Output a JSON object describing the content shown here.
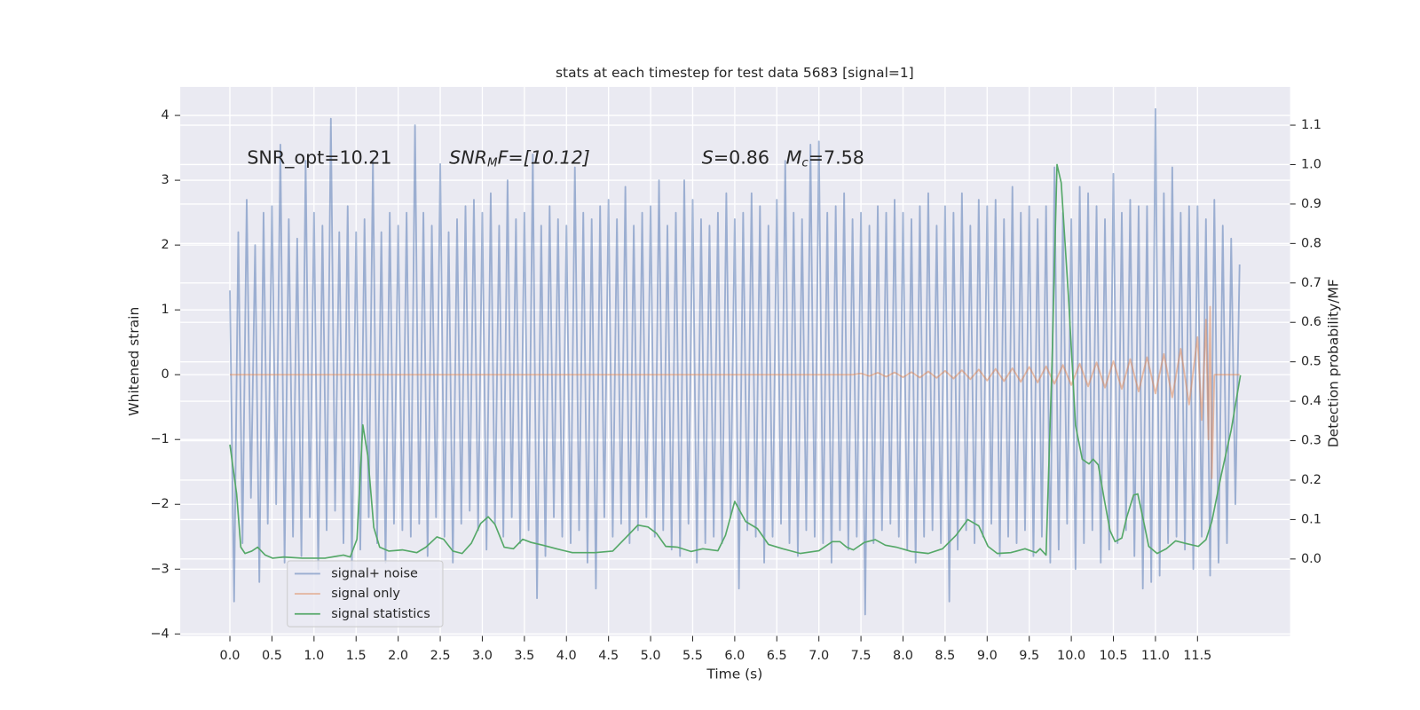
{
  "chart_data": {
    "type": "line",
    "title": "stats at each timestep for test data 5683 [signal=1]",
    "xlabel": "Time (s)",
    "ylabel": "Whitened strain",
    "y2label": "Detection probability/MF",
    "annotations": [
      {
        "parts": [
          "SNR_opt=10.21"
        ]
      },
      {
        "parts": [
          "SNR",
          "M",
          "F=[10.12]"
        ]
      },
      {
        "parts": [
          "S",
          "=0.86"
        ]
      },
      {
        "parts": [
          "M",
          "c",
          "=7.58"
        ]
      }
    ],
    "background": "#eaeaf2",
    "grid": true,
    "legend": "lower left",
    "xlim": [
      -0.59,
      12.6
    ],
    "xticks": [
      {
        "value": 0,
        "label": "0.0"
      },
      0.5,
      {
        "value": 1,
        "label": "1.0"
      },
      1.5,
      {
        "value": 2,
        "label": "2.0"
      },
      2.5,
      {
        "value": 3,
        "label": "3.0"
      },
      3.5,
      {
        "value": 4,
        "label": "4.0"
      },
      4.5,
      {
        "value": 5,
        "label": "5.0"
      },
      5.5,
      {
        "value": 6,
        "label": "6.0"
      },
      6.5,
      {
        "value": 7,
        "label": "7.0"
      },
      7.5,
      {
        "value": 8,
        "label": "8.0"
      },
      8.5,
      {
        "value": 9,
        "label": "9.0"
      },
      9.5,
      {
        "value": 10,
        "label": "10.0"
      },
      10.5,
      {
        "value": 11,
        "label": "11.0"
      },
      11.5
    ],
    "ylim": [
      -4.03,
      4.44
    ],
    "yticks": [
      {
        "value": -4,
        "label": "−4"
      },
      {
        "value": -3,
        "label": "−3"
      },
      {
        "value": -2,
        "label": "−2"
      },
      {
        "value": -1,
        "label": "−1"
      },
      0,
      1,
      2,
      3,
      4
    ],
    "y2lim": [
      -0.195,
      1.197
    ],
    "y2ticks": [
      {
        "value": 0,
        "label": "0.0"
      },
      0.1,
      0.2,
      0.3,
      0.4,
      0.5,
      0.6,
      0.7,
      0.8,
      0.9,
      {
        "value": 1,
        "label": "1.0"
      },
      1.1
    ],
    "series": [
      {
        "name": "signal+ noise",
        "color": "#4c72b0",
        "opacity": 0.5,
        "x": [
          0,
          0.05,
          0.1,
          0.15,
          0.2,
          0.25,
          0.3,
          0.35,
          0.4,
          0.45,
          0.5,
          0.55,
          0.6,
          0.65,
          0.7,
          0.75,
          0.8,
          0.85,
          0.9,
          0.95,
          1,
          1.05,
          1.1,
          1.15,
          1.2,
          1.25,
          1.3,
          1.35,
          1.4,
          1.45,
          1.5,
          1.55,
          1.6,
          1.65,
          1.7,
          1.75,
          1.8,
          1.85,
          1.9,
          1.95,
          2,
          2.05,
          2.1,
          2.15,
          2.2,
          2.25,
          2.3,
          2.35,
          2.4,
          2.45,
          2.5,
          2.55,
          2.6,
          2.65,
          2.7,
          2.75,
          2.8,
          2.85,
          2.9,
          2.95,
          3,
          3.05,
          3.1,
          3.15,
          3.2,
          3.25,
          3.3,
          3.35,
          3.4,
          3.45,
          3.5,
          3.55,
          3.6,
          3.65,
          3.7,
          3.75,
          3.8,
          3.85,
          3.9,
          3.95,
          4,
          4.05,
          4.1,
          4.15,
          4.2,
          4.25,
          4.3,
          4.35,
          4.4,
          4.45,
          4.5,
          4.55,
          4.6,
          4.65,
          4.7,
          4.75,
          4.8,
          4.85,
          4.9,
          4.95,
          5,
          5.05,
          5.1,
          5.15,
          5.2,
          5.25,
          5.3,
          5.35,
          5.4,
          5.45,
          5.5,
          5.55,
          5.6,
          5.65,
          5.7,
          5.75,
          5.8,
          5.85,
          5.9,
          5.95,
          6,
          6.05,
          6.1,
          6.15,
          6.2,
          6.25,
          6.3,
          6.35,
          6.4,
          6.45,
          6.5,
          6.55,
          6.6,
          6.65,
          6.7,
          6.75,
          6.8,
          6.85,
          6.9,
          6.95,
          7,
          7.05,
          7.1,
          7.15,
          7.2,
          7.25,
          7.3,
          7.35,
          7.4,
          7.45,
          7.5,
          7.55,
          7.6,
          7.65,
          7.7,
          7.75,
          7.8,
          7.85,
          7.9,
          7.95,
          8,
          8.05,
          8.1,
          8.15,
          8.2,
          8.25,
          8.3,
          8.35,
          8.4,
          8.45,
          8.5,
          8.55,
          8.6,
          8.65,
          8.7,
          8.75,
          8.8,
          8.85,
          8.9,
          8.95,
          9,
          9.05,
          9.1,
          9.15,
          9.2,
          9.25,
          9.3,
          9.35,
          9.4,
          9.45,
          9.5,
          9.55,
          9.6,
          9.65,
          9.7,
          9.75,
          9.8,
          9.85,
          9.9,
          9.95,
          10,
          10.05,
          10.1,
          10.15,
          10.2,
          10.25,
          10.3,
          10.35,
          10.4,
          10.45,
          10.5,
          10.55,
          10.6,
          10.65,
          10.7,
          10.75,
          10.8,
          10.85,
          10.9,
          10.95,
          11,
          11.05,
          11.1,
          11.15,
          11.2,
          11.25,
          11.3,
          11.35,
          11.4,
          11.45,
          11.5,
          11.55,
          11.6,
          11.65,
          11.7,
          11.75,
          11.8,
          11.85,
          11.9,
          11.95,
          12
        ],
        "values": [
          1.3,
          -3.5,
          2.2,
          -2.6,
          2.7,
          -1.9,
          2.0,
          -3.2,
          2.5,
          -2.3,
          2.6,
          -2.0,
          3.55,
          -2.9,
          2.4,
          -2.5,
          2.1,
          -2.8,
          3.3,
          -2.2,
          2.5,
          -3.0,
          2.3,
          -2.4,
          3.95,
          -2.1,
          2.2,
          -2.6,
          2.6,
          -3.0,
          2.2,
          -2.7,
          2.4,
          -2.2,
          3.3,
          -2.6,
          2.2,
          -2.9,
          2.5,
          -2.3,
          2.3,
          -2.4,
          2.5,
          -2.5,
          3.85,
          -2.3,
          2.5,
          -2.8,
          2.3,
          -2.2,
          3.25,
          -2.5,
          2.2,
          -2.9,
          2.4,
          -2.3,
          2.6,
          -2.1,
          2.7,
          -2.4,
          2.5,
          -2.7,
          2.8,
          -2.3,
          2.3,
          -2.5,
          3.0,
          -2.2,
          2.4,
          -2.6,
          2.5,
          -2.4,
          3.4,
          -3.45,
          2.3,
          -2.8,
          2.6,
          -2.2,
          2.4,
          -2.5,
          2.3,
          -2.6,
          3.2,
          -2.4,
          2.5,
          -2.9,
          2.4,
          -3.3,
          2.6,
          -2.2,
          2.7,
          -2.5,
          2.4,
          -2.3,
          2.9,
          -2.6,
          2.3,
          -2.4,
          2.5,
          -2.2,
          2.6,
          -2.5,
          3.0,
          -2.4,
          2.3,
          -2.7,
          2.5,
          -2.8,
          3.0,
          -2.3,
          2.7,
          -2.9,
          2.4,
          -2.6,
          2.3,
          -2.5,
          2.5,
          -2.6,
          2.8,
          -2.2,
          2.4,
          -3.3,
          2.5,
          -2.4,
          2.8,
          -2.5,
          2.6,
          -2.9,
          2.3,
          -2.5,
          2.7,
          -2.3,
          3.3,
          -2.6,
          2.5,
          -2.8,
          2.4,
          -2.4,
          3.55,
          -2.5,
          3.6,
          -2.6,
          2.5,
          -2.9,
          2.6,
          -2.4,
          2.8,
          -2.7,
          2.4,
          -2.5,
          2.5,
          -3.7,
          2.3,
          -2.6,
          2.6,
          -2.4,
          2.5,
          -2.3,
          2.7,
          -2.5,
          2.5,
          -2.7,
          2.4,
          -2.9,
          2.6,
          -2.5,
          2.8,
          -2.4,
          2.3,
          -2.6,
          2.6,
          -3.5,
          2.5,
          -2.7,
          2.8,
          -2.4,
          2.3,
          -2.6,
          2.7,
          -2.5,
          2.6,
          -2.3,
          2.7,
          -2.8,
          2.4,
          -2.5,
          2.9,
          -2.6,
          2.5,
          -2.4,
          2.6,
          -2.8,
          2.4,
          -2.5,
          2.6,
          -2.9,
          3.2,
          -2.7,
          2.5,
          -2.3,
          2.4,
          -3.0,
          2.9,
          -2.6,
          2.8,
          -2.4,
          2.6,
          -2.9,
          2.4,
          -2.7,
          3.1,
          -2.6,
          2.5,
          -2.4,
          2.7,
          -2.8,
          2.6,
          -3.3,
          2.6,
          -3.2,
          4.1,
          -3.1,
          2.8,
          -2.6,
          3.2,
          -2.5,
          2.5,
          -2.7,
          2.6,
          -3.0,
          2.6,
          -2.5,
          2.4,
          -3.1,
          2.7,
          -2.9,
          2.3,
          -2.6,
          2.1,
          -2.0,
          1.7
        ]
      },
      {
        "name": "signal only",
        "color": "#dd8452",
        "opacity": 0.5,
        "x": [
          0,
          7.4,
          7.5,
          7.6,
          7.7,
          7.8,
          7.9,
          8.0,
          8.1,
          8.2,
          8.3,
          8.4,
          8.5,
          8.6,
          8.7,
          8.8,
          8.9,
          9.0,
          9.1,
          9.2,
          9.3,
          9.4,
          9.5,
          9.6,
          9.7,
          9.8,
          9.9,
          10.0,
          10.1,
          10.2,
          10.3,
          10.4,
          10.5,
          10.6,
          10.7,
          10.8,
          10.9,
          11.0,
          11.1,
          11.2,
          11.3,
          11.4,
          11.5,
          11.55,
          11.6,
          11.63,
          11.65,
          11.67,
          11.7,
          12.0
        ],
        "values": [
          0,
          0,
          0.02,
          -0.02,
          0.03,
          -0.03,
          0.035,
          -0.04,
          0.04,
          -0.045,
          0.05,
          -0.05,
          0.06,
          -0.06,
          0.07,
          -0.07,
          0.08,
          -0.09,
          0.09,
          -0.1,
          0.1,
          -0.11,
          0.12,
          -0.12,
          0.13,
          -0.14,
          0.15,
          -0.16,
          0.17,
          -0.18,
          0.19,
          -0.2,
          0.21,
          -0.22,
          0.24,
          -0.26,
          0.27,
          -0.29,
          0.32,
          -0.35,
          0.4,
          -0.46,
          0.58,
          -0.7,
          0.85,
          -1.0,
          1.05,
          -1.6,
          0,
          0
        ]
      },
      {
        "name": "signal statistics",
        "color": "#55a868",
        "opacity": 1,
        "axis": "y2",
        "x": [
          0,
          0.08,
          0.13,
          0.18,
          0.26,
          0.33,
          0.42,
          0.51,
          0.64,
          0.86,
          1.13,
          1.35,
          1.43,
          1.51,
          1.58,
          1.64,
          1.71,
          1.78,
          1.89,
          2.05,
          2.22,
          2.33,
          2.46,
          2.54,
          2.65,
          2.76,
          2.87,
          2.98,
          3.07,
          3.15,
          3.26,
          3.37,
          3.48,
          3.58,
          3.72,
          3.88,
          4.07,
          4.34,
          4.55,
          4.7,
          4.85,
          4.97,
          5.07,
          5.18,
          5.32,
          5.48,
          5.62,
          5.8,
          5.89,
          6.0,
          6.13,
          6.27,
          6.4,
          6.57,
          6.78,
          7.0,
          7.16,
          7.25,
          7.33,
          7.41,
          7.54,
          7.67,
          7.79,
          7.92,
          8.1,
          8.3,
          8.47,
          8.63,
          8.77,
          8.9,
          9.01,
          9.12,
          9.28,
          9.45,
          9.58,
          9.63,
          9.7,
          9.77,
          9.83,
          9.88,
          9.97,
          10.05,
          10.13,
          10.21,
          10.26,
          10.32,
          10.39,
          10.46,
          10.52,
          10.6,
          10.66,
          10.74,
          10.79,
          10.86,
          10.92,
          11.02,
          11.13,
          11.24,
          11.37,
          11.51,
          11.6,
          11.67,
          11.78,
          11.9,
          12.01
        ],
        "values": [
          0.29,
          0.165,
          0.03,
          0.014,
          0.02,
          0.03,
          0.01,
          0.002,
          0.005,
          0.002,
          0.002,
          0.01,
          0.005,
          0.05,
          0.34,
          0.26,
          0.08,
          0.03,
          0.02,
          0.023,
          0.016,
          0.03,
          0.056,
          0.05,
          0.02,
          0.014,
          0.04,
          0.09,
          0.107,
          0.088,
          0.03,
          0.026,
          0.05,
          0.042,
          0.035,
          0.026,
          0.016,
          0.016,
          0.02,
          0.053,
          0.086,
          0.081,
          0.065,
          0.032,
          0.03,
          0.019,
          0.026,
          0.021,
          0.06,
          0.146,
          0.095,
          0.077,
          0.037,
          0.026,
          0.014,
          0.021,
          0.044,
          0.044,
          0.03,
          0.023,
          0.042,
          0.049,
          0.035,
          0.03,
          0.019,
          0.014,
          0.026,
          0.06,
          0.1,
          0.084,
          0.032,
          0.014,
          0.016,
          0.026,
          0.016,
          0.026,
          0.01,
          0.49,
          1.0,
          0.954,
          0.652,
          0.339,
          0.253,
          0.241,
          0.253,
          0.239,
          0.153,
          0.072,
          0.044,
          0.053,
          0.107,
          0.162,
          0.165,
          0.095,
          0.032,
          0.014,
          0.026,
          0.046,
          0.039,
          0.032,
          0.049,
          0.095,
          0.211,
          0.327,
          0.466
        ]
      }
    ]
  }
}
